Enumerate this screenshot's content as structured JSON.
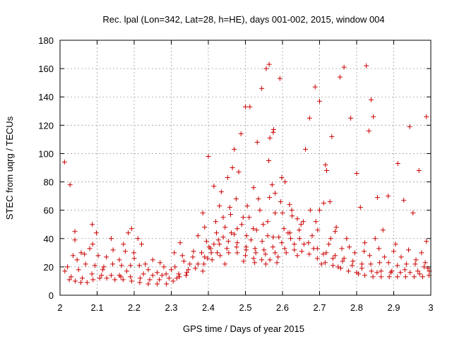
{
  "chart_data": {
    "type": "scatter",
    "title": "Rec. lpal (Lon=342, Lat=28, h=HE), days 001-002, 2015, window 004",
    "xlabel": "GPS time / Days of year 2015",
    "ylabel": "STEC from uqrg / TECUs",
    "xlim": [
      2.0,
      3.0
    ],
    "ylim": [
      0,
      180
    ],
    "grid": true,
    "marker": "+",
    "marker_color": "#cc0000",
    "x_ticks": [
      "2",
      "2.1",
      "2.2",
      "2.3",
      "2.4",
      "2.5",
      "2.6",
      "2.7",
      "2.8",
      "2.9",
      "3"
    ],
    "y_ticks": [
      "0",
      "20",
      "40",
      "60",
      "80",
      "100",
      "120",
      "140",
      "160",
      "180"
    ],
    "points": [
      [
        2.012,
        94
      ],
      [
        2.027,
        78
      ],
      [
        2.04,
        45
      ],
      [
        2.04,
        39
      ],
      [
        2.057,
        30
      ],
      [
        2.066,
        29
      ],
      [
        2.087,
        50
      ],
      [
        2.098,
        44
      ],
      [
        2.088,
        36
      ],
      [
        2.103,
        28
      ],
      [
        2.138,
        40
      ],
      [
        2.143,
        32
      ],
      [
        2.171,
        36
      ],
      [
        2.176,
        31
      ],
      [
        2.184,
        44
      ],
      [
        2.193,
        47
      ],
      [
        2.199,
        30
      ],
      [
        2.21,
        40
      ],
      [
        2.22,
        36
      ],
      [
        2.25,
        25
      ],
      [
        2.27,
        23
      ],
      [
        2.308,
        30
      ],
      [
        2.324,
        37
      ],
      [
        2.372,
        42
      ],
      [
        2.385,
        58
      ],
      [
        2.39,
        48
      ],
      [
        2.4,
        98
      ],
      [
        2.415,
        77
      ],
      [
        2.43,
        63
      ],
      [
        2.44,
        55
      ],
      [
        2.452,
        83
      ],
      [
        2.465,
        90
      ],
      [
        2.47,
        103
      ],
      [
        2.482,
        87
      ],
      [
        2.488,
        114
      ],
      [
        2.5,
        133
      ],
      [
        2.512,
        133
      ],
      [
        2.522,
        76
      ],
      [
        2.532,
        108
      ],
      [
        2.544,
        146
      ],
      [
        2.556,
        160
      ],
      [
        2.564,
        163
      ],
      [
        2.575,
        115
      ],
      [
        2.576,
        117
      ],
      [
        2.566,
        111
      ],
      [
        2.563,
        95
      ],
      [
        2.572,
        78
      ],
      [
        2.58,
        72
      ],
      [
        2.593,
        153
      ],
      [
        2.598,
        83
      ],
      [
        2.607,
        80
      ],
      [
        2.619,
        64
      ],
      [
        2.64,
        54
      ],
      [
        2.662,
        103
      ],
      [
        2.673,
        125
      ],
      [
        2.688,
        147
      ],
      [
        2.7,
        137
      ],
      [
        2.716,
        92
      ],
      [
        2.719,
        88
      ],
      [
        2.733,
        112
      ],
      [
        2.755,
        154
      ],
      [
        2.766,
        161
      ],
      [
        2.784,
        125
      ],
      [
        2.8,
        86
      ],
      [
        2.81,
        62
      ],
      [
        2.826,
        162
      ],
      [
        2.833,
        116
      ],
      [
        2.839,
        138
      ],
      [
        2.845,
        126
      ],
      [
        2.856,
        69
      ],
      [
        2.871,
        46
      ],
      [
        2.885,
        70
      ],
      [
        2.911,
        93
      ],
      [
        2.927,
        67
      ],
      [
        2.943,
        119
      ],
      [
        2.952,
        58
      ],
      [
        2.968,
        88
      ],
      [
        2.988,
        126
      ],
      [
        2.988,
        38
      ],
      [
        2.905,
        36
      ],
      [
        2.86,
        33
      ],
      [
        2.822,
        37
      ],
      [
        2.773,
        40
      ],
      [
        2.742,
        45
      ],
      [
        2.728,
        66
      ],
      [
        2.711,
        65
      ],
      [
        2.7,
        60
      ],
      [
        2.656,
        52
      ],
      [
        2.626,
        56
      ],
      [
        2.604,
        47
      ],
      [
        2.59,
        41
      ],
      [
        2.56,
        52
      ],
      [
        2.539,
        60
      ],
      [
        2.521,
        47
      ],
      [
        2.503,
        42
      ],
      [
        2.494,
        55
      ],
      [
        2.478,
        47
      ],
      [
        2.462,
        44
      ],
      [
        2.445,
        48
      ],
      [
        2.427,
        39
      ],
      [
        2.415,
        36
      ],
      [
        2.402,
        34
      ],
      [
        2.013,
        17
      ],
      [
        2.025,
        11
      ],
      [
        2.041,
        10
      ],
      [
        2.056,
        9
      ],
      [
        2.073,
        9
      ],
      [
        2.089,
        11
      ],
      [
        2.107,
        12
      ],
      [
        2.126,
        12
      ],
      [
        2.148,
        11
      ],
      [
        2.17,
        11
      ],
      [
        2.193,
        10
      ],
      [
        2.215,
        9
      ],
      [
        2.238,
        8
      ],
      [
        2.262,
        8
      ],
      [
        2.287,
        8
      ],
      [
        2.305,
        10
      ],
      [
        2.322,
        13
      ],
      [
        2.342,
        16
      ],
      [
        2.365,
        19
      ],
      [
        2.388,
        22
      ],
      [
        2.41,
        25
      ],
      [
        2.432,
        28
      ],
      [
        2.455,
        30
      ],
      [
        2.478,
        30
      ],
      [
        2.5,
        28
      ],
      [
        2.522,
        26
      ],
      [
        2.544,
        25
      ],
      [
        2.566,
        25
      ],
      [
        2.588,
        27
      ],
      [
        2.61,
        30
      ],
      [
        2.632,
        32
      ],
      [
        2.652,
        31
      ],
      [
        2.672,
        29
      ],
      [
        2.694,
        26
      ],
      [
        2.715,
        23
      ],
      [
        2.736,
        21
      ],
      [
        2.757,
        19
      ],
      [
        2.778,
        17
      ],
      [
        2.8,
        16
      ],
      [
        2.822,
        14
      ],
      [
        2.844,
        13
      ],
      [
        2.866,
        13
      ],
      [
        2.888,
        13
      ],
      [
        2.91,
        13
      ],
      [
        2.932,
        13
      ],
      [
        2.955,
        13
      ],
      [
        2.978,
        13
      ],
      [
        2.995,
        14
      ],
      [
        2.02,
        20
      ],
      [
        2.046,
        25
      ],
      [
        2.069,
        22
      ],
      [
        2.094,
        21
      ],
      [
        2.118,
        20
      ],
      [
        2.142,
        22
      ],
      [
        2.166,
        21
      ],
      [
        2.19,
        21
      ],
      [
        2.214,
        21
      ],
      [
        2.238,
        18
      ],
      [
        2.262,
        16
      ],
      [
        2.286,
        15
      ],
      [
        2.31,
        20
      ],
      [
        2.334,
        24
      ],
      [
        2.358,
        27
      ],
      [
        2.382,
        30
      ],
      [
        2.406,
        33
      ],
      [
        2.43,
        36
      ],
      [
        2.454,
        38
      ],
      [
        2.478,
        37
      ],
      [
        2.502,
        34
      ],
      [
        2.526,
        33
      ],
      [
        2.55,
        32
      ],
      [
        2.574,
        34
      ],
      [
        2.598,
        37
      ],
      [
        2.622,
        40
      ],
      [
        2.646,
        40
      ],
      [
        2.67,
        37
      ],
      [
        2.694,
        33
      ],
      [
        2.718,
        30
      ],
      [
        2.742,
        28
      ],
      [
        2.766,
        26
      ],
      [
        2.79,
        24
      ],
      [
        2.814,
        22
      ],
      [
        2.838,
        22
      ],
      [
        2.862,
        23
      ],
      [
        2.886,
        23
      ],
      [
        2.91,
        21
      ],
      [
        2.934,
        22
      ],
      [
        2.958,
        22
      ],
      [
        2.982,
        20
      ],
      [
        2.03,
        13
      ],
      [
        2.06,
        12
      ],
      [
        2.086,
        15
      ],
      [
        2.112,
        14
      ],
      [
        2.138,
        14
      ],
      [
        2.164,
        13
      ],
      [
        2.19,
        13
      ],
      [
        2.216,
        12
      ],
      [
        2.242,
        11
      ],
      [
        2.268,
        11
      ],
      [
        2.294,
        12
      ],
      [
        2.32,
        15
      ],
      [
        2.346,
        18
      ],
      [
        2.372,
        22
      ],
      [
        2.398,
        26
      ],
      [
        2.424,
        30
      ],
      [
        2.45,
        33
      ],
      [
        2.476,
        34
      ],
      [
        2.502,
        32
      ],
      [
        2.528,
        30
      ],
      [
        2.554,
        29
      ],
      [
        2.58,
        30
      ],
      [
        2.606,
        33
      ],
      [
        2.632,
        36
      ],
      [
        2.658,
        36
      ],
      [
        2.684,
        33
      ],
      [
        2.71,
        29
      ],
      [
        2.736,
        26
      ],
      [
        2.762,
        24
      ],
      [
        2.788,
        21
      ],
      [
        2.814,
        19
      ],
      [
        2.84,
        17
      ],
      [
        2.866,
        17
      ],
      [
        2.892,
        16
      ],
      [
        2.918,
        16
      ],
      [
        2.944,
        16
      ],
      [
        2.97,
        15
      ],
      [
        2.996,
        17
      ],
      [
        2.035,
        28
      ],
      [
        2.08,
        33
      ],
      [
        2.125,
        27
      ],
      [
        2.16,
        25
      ],
      [
        2.2,
        26
      ],
      [
        2.23,
        22
      ],
      [
        2.28,
        20
      ],
      [
        2.33,
        28
      ],
      [
        2.36,
        31
      ],
      [
        2.395,
        38
      ],
      [
        2.44,
        41
      ],
      [
        2.47,
        43
      ],
      [
        2.515,
        39
      ],
      [
        2.545,
        38
      ],
      [
        2.575,
        41
      ],
      [
        2.615,
        44
      ],
      [
        2.645,
        46
      ],
      [
        2.68,
        42
      ],
      [
        2.725,
        36
      ],
      [
        2.76,
        33
      ],
      [
        2.795,
        30
      ],
      [
        2.835,
        28
      ],
      [
        2.875,
        27
      ],
      [
        2.92,
        27
      ],
      [
        2.96,
        25
      ],
      [
        2.985,
        23
      ],
      [
        2.05,
        18
      ],
      [
        2.115,
        18
      ],
      [
        2.18,
        17
      ],
      [
        2.25,
        14
      ],
      [
        2.315,
        12
      ],
      [
        2.35,
        22
      ],
      [
        2.42,
        52
      ],
      [
        2.46,
        57
      ],
      [
        2.505,
        63
      ],
      [
        2.535,
        68
      ],
      [
        2.565,
        69
      ],
      [
        2.595,
        66
      ],
      [
        2.625,
        60
      ],
      [
        2.69,
        52
      ],
      [
        2.745,
        48
      ],
      [
        2.78,
        34
      ],
      [
        2.82,
        31
      ],
      [
        2.85,
        40
      ],
      [
        2.9,
        31
      ],
      [
        2.94,
        32
      ],
      [
        2.975,
        30
      ],
      [
        2.16,
        14
      ],
      [
        2.225,
        15
      ],
      [
        2.275,
        14
      ],
      [
        2.3,
        18
      ],
      [
        2.34,
        14
      ],
      [
        2.385,
        17
      ],
      [
        2.445,
        22
      ],
      [
        2.495,
        24
      ],
      [
        2.525,
        23
      ],
      [
        2.555,
        22
      ],
      [
        2.585,
        23
      ],
      [
        2.64,
        28
      ],
      [
        2.705,
        22
      ],
      [
        2.75,
        20
      ],
      [
        2.805,
        15
      ],
      [
        2.855,
        16
      ],
      [
        2.895,
        17
      ],
      [
        2.93,
        18
      ],
      [
        2.965,
        17
      ],
      [
        2.992,
        19
      ],
      [
        2.435,
        73
      ],
      [
        2.475,
        68
      ],
      [
        2.51,
        55
      ],
      [
        2.548,
        50
      ],
      [
        2.58,
        58
      ],
      [
        2.6,
        58
      ],
      [
        2.65,
        50
      ],
      [
        2.695,
        46
      ],
      [
        2.73,
        40
      ],
      [
        2.675,
        60
      ],
      [
        2.62,
        44
      ],
      [
        2.56,
        42
      ],
      [
        2.53,
        46
      ],
      [
        2.49,
        50
      ],
      [
        2.458,
        62
      ],
      [
        2.422,
        44
      ],
      [
        2.408,
        30
      ],
      [
        2.39,
        27
      ]
    ]
  }
}
